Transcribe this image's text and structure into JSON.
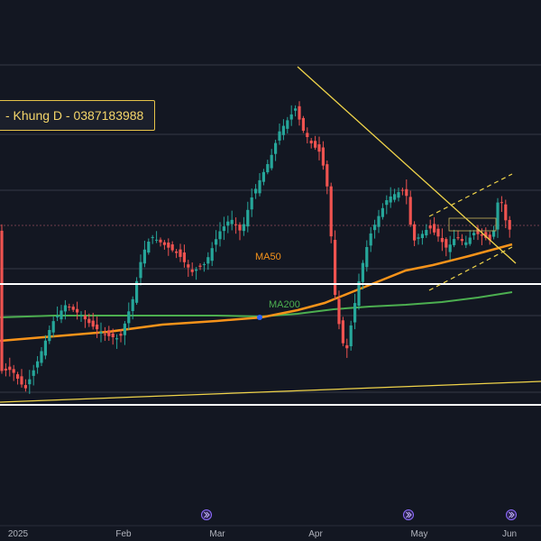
{
  "banner": {
    "text": "- Khung D - 0387183988"
  },
  "chart_data": {
    "type": "candlestick",
    "timeframe": "D",
    "x_ticks": [
      "2025",
      "Feb",
      "Mar",
      "Apr",
      "May",
      "Jun"
    ],
    "moving_averages": [
      {
        "name": "MA50",
        "color": "#f7931a"
      },
      {
        "name": "MA200",
        "color": "#4caf50"
      }
    ],
    "horizontal_levels_white": 2,
    "trendlines": [
      "descending resistance",
      "rising channel (dashed)",
      "long-term support"
    ],
    "colors": {
      "up": "#26a69a",
      "down": "#ef5350",
      "trendline": "#f0d44a",
      "background": "#131722"
    }
  }
}
